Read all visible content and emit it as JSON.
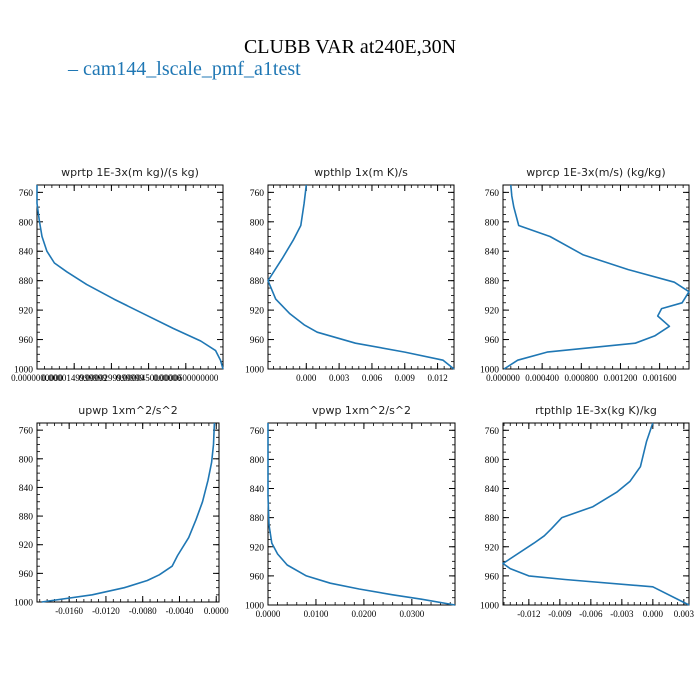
{
  "figure": {
    "title": "CLUBB VAR at240E,30N",
    "legend_label": "cam144_lscale_pmf_a1test",
    "series_color": "#1f77b4"
  },
  "chart_data": [
    {
      "type": "line",
      "title": "wprtp  1E-3x(m kg)/(s kg)",
      "xlim": [
        0.0,
        7.5e-05
      ],
      "ylim": [
        1000,
        750
      ],
      "yticks": [
        760,
        800,
        840,
        880,
        920,
        960,
        1000
      ],
      "xticks": [
        0.0,
        1.5e-05,
        3e-05,
        4.5e-05,
        6e-05
      ],
      "xtick_labels": [
        "0.0000000000",
        "0.0000149999999",
        "0.0000299999999",
        "0.0000450000000",
        "0.0000600000000"
      ],
      "series": [
        {
          "name": "cam144_lscale_pmf_a1test",
          "x": [
            0.0,
            0.0,
            1e-06,
            2e-06,
            4e-06,
            7e-06,
            1.2e-05,
            2e-05,
            3.1e-05,
            4.3e-05,
            5.5e-05,
            6.6e-05,
            7.2e-05,
            7.4e-05,
            7.5e-05
          ],
          "y": [
            750,
            775,
            800,
            820,
            840,
            856,
            868,
            885,
            905,
            925,
            945,
            962,
            975,
            988,
            1000
          ]
        }
      ]
    },
    {
      "type": "line",
      "title": "wpthlp  1x(m K)/s",
      "xlim": [
        -0.0035,
        0.0135
      ],
      "ylim": [
        1000,
        750
      ],
      "yticks": [
        760,
        800,
        840,
        880,
        920,
        960,
        1000
      ],
      "xticks": [
        0.0,
        0.003,
        0.006,
        0.009,
        0.012
      ],
      "xtick_labels": [
        "0.000",
        "0.003",
        "0.006",
        "0.009",
        "0.012"
      ],
      "series": [
        {
          "name": "cam144_lscale_pmf_a1test",
          "x": [
            0.0,
            -0.0002,
            -0.0005,
            -0.0012,
            -0.0022,
            -0.0035,
            -0.0028,
            -0.0015,
            -0.0002,
            0.001,
            0.0045,
            0.009,
            0.0125,
            0.0135
          ],
          "y": [
            750,
            775,
            805,
            825,
            850,
            880,
            905,
            925,
            940,
            950,
            965,
            977,
            988,
            1000
          ]
        }
      ]
    },
    {
      "type": "line",
      "title": "wprcp  1E-3x(m/s) (kg/kg)",
      "xlim": [
        0.0,
        0.0019
      ],
      "ylim": [
        1000,
        750
      ],
      "yticks": [
        760,
        800,
        840,
        880,
        920,
        960,
        1000
      ],
      "xticks": [
        0.0,
        0.0004,
        0.0008,
        0.0012,
        0.0016
      ],
      "xtick_labels": [
        "0.000000",
        "0.000400",
        "0.000800",
        "0.001200",
        "0.001600"
      ],
      "series": [
        {
          "name": "cam144_lscale_pmf_a1test",
          "x": [
            8e-05,
            9e-05,
            0.00011,
            0.00016,
            0.00048,
            0.00082,
            0.00128,
            0.00175,
            0.0019,
            0.00183,
            0.00162,
            0.00158,
            0.0017,
            0.00155,
            0.00135,
            0.00045,
            0.00015,
            1e-05
          ],
          "y": [
            750,
            765,
            780,
            805,
            820,
            845,
            865,
            882,
            895,
            910,
            918,
            928,
            942,
            955,
            965,
            977,
            988,
            1000
          ]
        }
      ]
    },
    {
      "type": "line",
      "title": "upwp  1xm^2/s^2",
      "xlim": [
        -0.0195,
        0.0003
      ],
      "ylim": [
        1000,
        750
      ],
      "yticks": [
        760,
        800,
        840,
        880,
        920,
        960,
        1000
      ],
      "xticks": [
        -0.016,
        -0.012,
        -0.008,
        -0.004,
        0.0
      ],
      "xtick_labels": [
        "-0.0160",
        "-0.0120",
        "-0.0080",
        "-0.0040",
        "0.0000"
      ],
      "series": [
        {
          "name": "cam144_lscale_pmf_a1test",
          "x": [
            -0.0002,
            -0.0003,
            -0.0005,
            -0.0009,
            -0.0015,
            -0.0022,
            -0.003,
            -0.0042,
            -0.0048,
            -0.0062,
            -0.0075,
            -0.01,
            -0.0135,
            -0.019
          ],
          "y": [
            750,
            780,
            805,
            830,
            860,
            885,
            910,
            935,
            950,
            962,
            970,
            980,
            990,
            1000
          ]
        }
      ]
    },
    {
      "type": "line",
      "title": "vpwp  1xm^2/s^2",
      "xlim": [
        0.0,
        0.039
      ],
      "ylim": [
        1000,
        750
      ],
      "yticks": [
        760,
        800,
        840,
        880,
        920,
        960,
        1000
      ],
      "xticks": [
        0.0,
        0.01,
        0.02,
        0.03
      ],
      "xtick_labels": [
        "0.0000",
        "0.0100",
        "0.0200",
        "0.0300"
      ],
      "series": [
        {
          "name": "cam144_lscale_pmf_a1test",
          "x": [
            0.0,
            0.0,
            0.0002,
            0.0008,
            0.002,
            0.004,
            0.008,
            0.013,
            0.019,
            0.026,
            0.032,
            0.039
          ],
          "y": [
            750,
            850,
            890,
            915,
            930,
            945,
            960,
            970,
            978,
            986,
            992,
            1000
          ]
        }
      ]
    },
    {
      "type": "line",
      "title": "rtpthlp  1E-3x(kg K)/kg",
      "xlim": [
        -0.0145,
        0.0035
      ],
      "ylim": [
        1000,
        750
      ],
      "yticks": [
        760,
        800,
        840,
        880,
        920,
        960,
        1000
      ],
      "xticks": [
        -0.012,
        -0.009,
        -0.006,
        -0.003,
        0.0,
        0.003
      ],
      "xtick_labels": [
        "-0.012",
        "-0.009",
        "-0.006",
        "-0.003",
        "0.000",
        "0.003"
      ],
      "series": [
        {
          "name": "cam144_lscale_pmf_a1test",
          "x": [
            0.0,
            -0.0006,
            -0.0012,
            -0.0022,
            -0.0035,
            -0.0058,
            -0.0088,
            -0.0098,
            -0.0105,
            -0.0115,
            -0.0145,
            -0.0138,
            -0.012,
            -0.0085,
            0.0,
            0.0035
          ],
          "y": [
            750,
            775,
            810,
            830,
            845,
            865,
            880,
            895,
            905,
            915,
            943,
            950,
            960,
            965,
            975,
            1000
          ]
        }
      ]
    }
  ]
}
